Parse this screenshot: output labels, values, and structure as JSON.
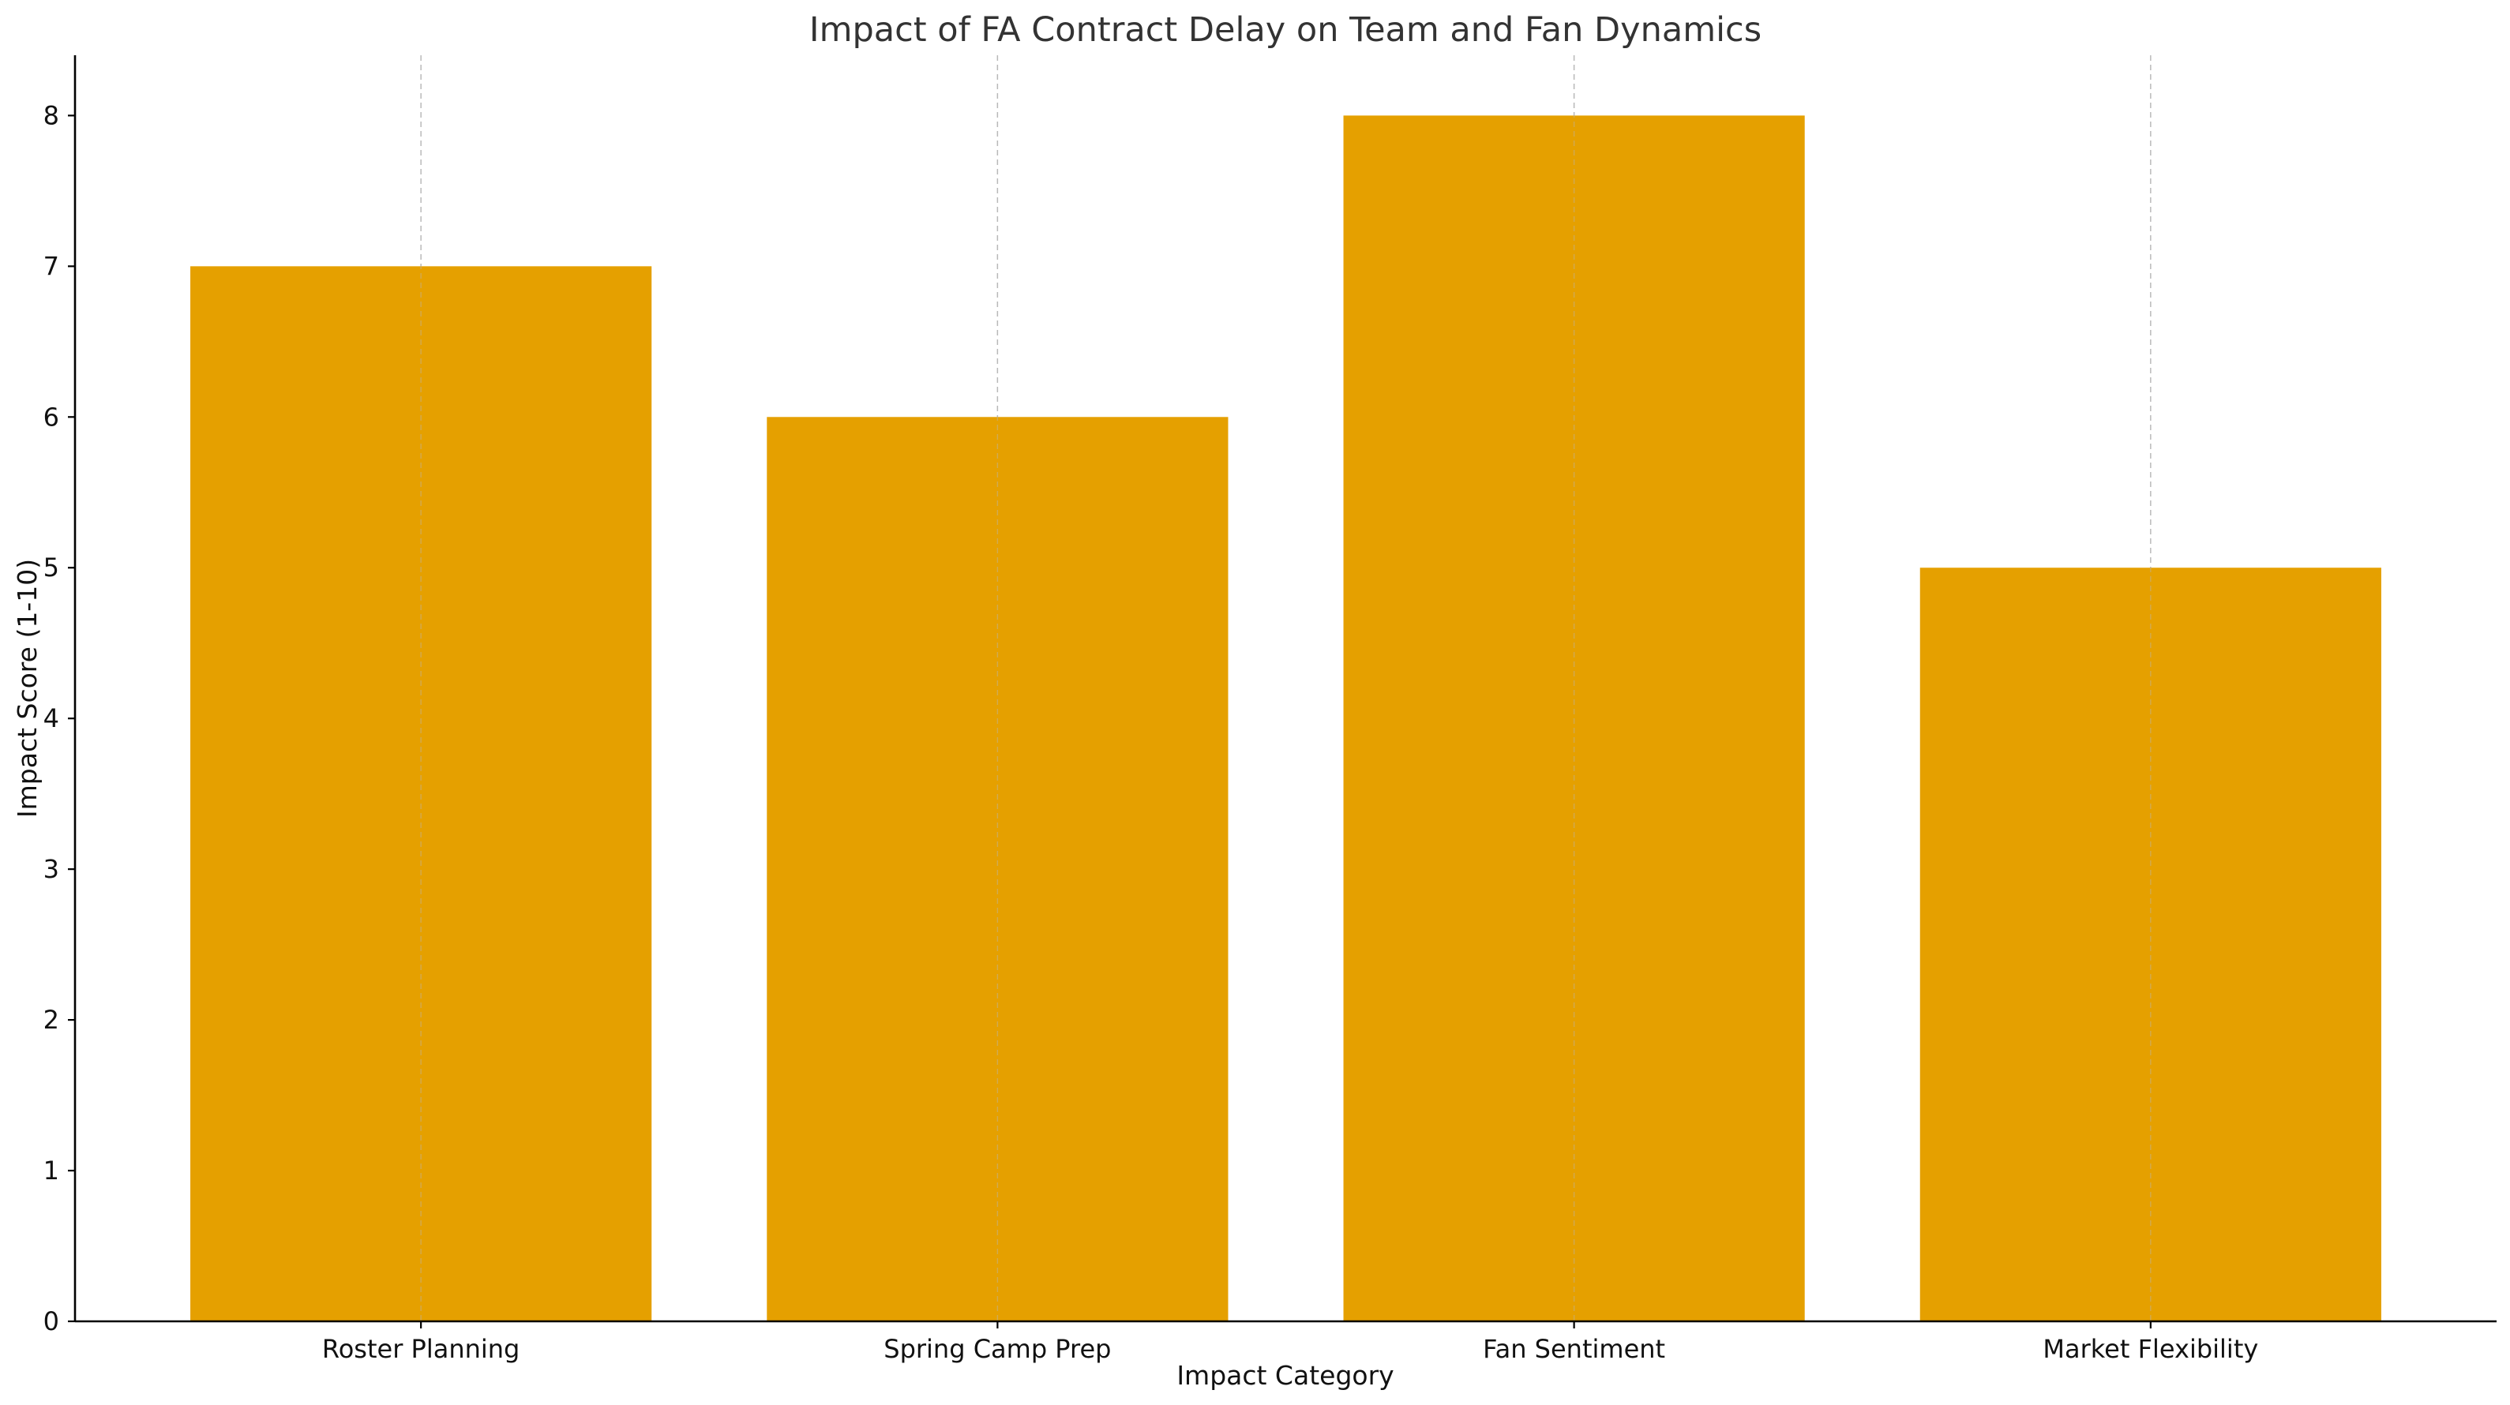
{
  "chart_data": {
    "type": "bar",
    "title": "Impact of FA Contract Delay on Team and Fan Dynamics",
    "xlabel": "Impact Category",
    "ylabel": "Impact Score (1-10)",
    "categories": [
      "Roster Planning",
      "Spring Camp Prep",
      "Fan Sentiment",
      "Market Flexibility"
    ],
    "values": [
      7,
      6,
      8,
      5
    ],
    "ylim": [
      0,
      8.4
    ],
    "yticks": [
      0,
      1,
      2,
      3,
      4,
      5,
      6,
      7,
      8
    ],
    "bar_color": "#E5A000",
    "grid": {
      "x": true,
      "y": false,
      "style": "dashed"
    },
    "legend": "none"
  }
}
